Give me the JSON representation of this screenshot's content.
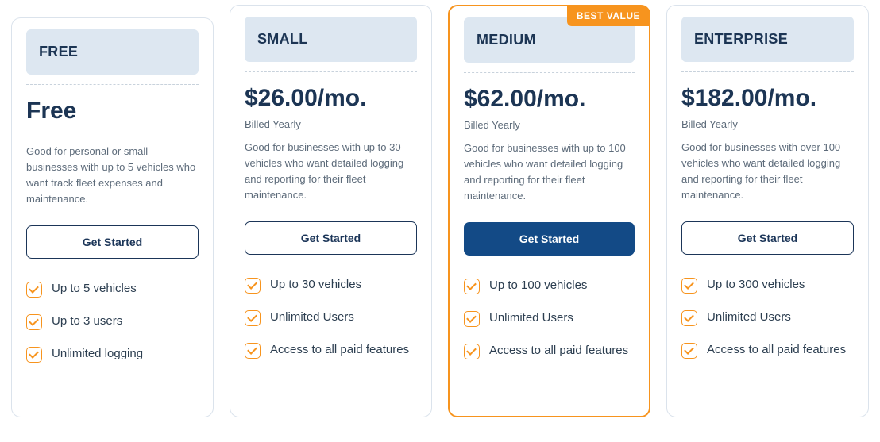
{
  "colors": {
    "navy": "#1c3554",
    "orange": "#f7941e",
    "card_border": "#dbe3ec",
    "header_bg": "#dde7f1",
    "btn_fill": "#134a86",
    "muted": "#5d6b7a"
  },
  "plans": [
    {
      "id": "free",
      "name": "FREE",
      "price": "Free",
      "billing": "",
      "desc": "Good for personal or small businesses with up to 5 vehicles who want track fleet expenses and maintenance.",
      "cta": "Get Started",
      "highlighted": false,
      "features": [
        "Up to 5 vehicles",
        "Up to 3 users",
        "Unlimited logging"
      ]
    },
    {
      "id": "small",
      "name": "SMALL",
      "price": "$26.00/mo.",
      "billing": "Billed Yearly",
      "desc": "Good for businesses with up to 30 vehicles who want detailed logging and reporting for their fleet maintenance.",
      "cta": "Get Started",
      "highlighted": false,
      "features": [
        "Up to 30 vehicles",
        "Unlimited Users",
        "Access to all paid features"
      ]
    },
    {
      "id": "medium",
      "name": "MEDIUM",
      "badge": "BEST VALUE",
      "price": "$62.00/mo.",
      "billing": "Billed Yearly",
      "desc": "Good for businesses with up to 100 vehicles who want detailed logging and reporting for their fleet maintenance.",
      "cta": "Get Started",
      "highlighted": true,
      "features": [
        "Up to 100 vehicles",
        "Unlimited Users",
        "Access to all paid features"
      ]
    },
    {
      "id": "enterprise",
      "name": "ENTERPRISE",
      "price": "$182.00/mo.",
      "billing": "Billed Yearly",
      "desc": "Good for businesses with over 100 vehicles who want detailed logging and reporting for their fleet maintenance.",
      "cta": "Get Started",
      "highlighted": false,
      "features": [
        "Up to 300 vehicles",
        "Unlimited Users",
        "Access to all paid features"
      ]
    }
  ]
}
